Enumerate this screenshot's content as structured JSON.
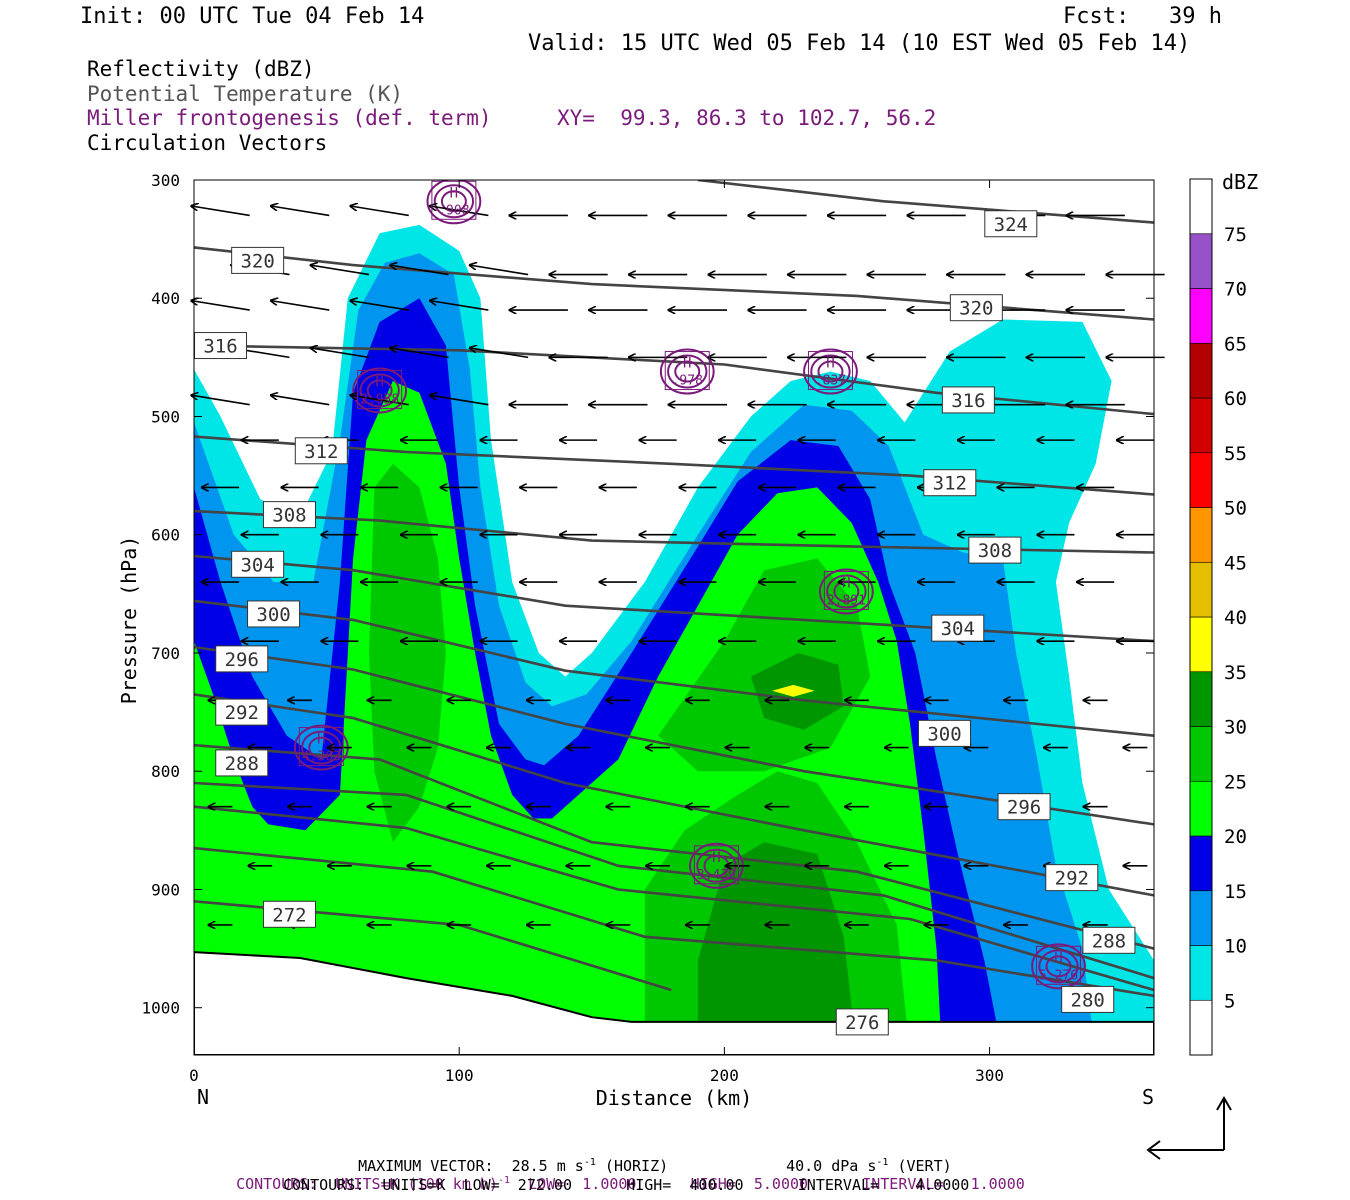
{
  "header": {
    "init": "Init: 00 UTC Tue 04 Feb 14",
    "fcst": "Fcst:   39 h",
    "valid": "Valid: 15 UTC Wed 05 Feb 14 (10 EST Wed 05 Feb 14)"
  },
  "fields": {
    "reflectivity": "Reflectivity (dBZ)",
    "theta": "Potential Temperature (K)",
    "frontogenesis": "Miller frontogenesis (def. term)",
    "xy": "XY=  99.3, 86.3 to 102.7, 56.2",
    "vectors": "Circulation Vectors"
  },
  "colors": {
    "title_text": "#000000",
    "theta_text": "#555555",
    "fronto": "#7a1a7a",
    "theta_line": "#444444",
    "frame": "#000000"
  },
  "footer": {
    "vector": "MAXIMUM VECTOR:  28.5 m s",
    "vector_exp": "-1",
    "vector_horiz": " (HORIZ)",
    "vector_vert": "40.0 dPa s",
    "vector_vert_exp": "-1",
    "vector_vert_tail": " (VERT)",
    "contours1_a": "CONTOURS:  UNITS=K (100 km h)",
    "contours1_exp": "-1",
    "contours1_b": "  LOW=  1.0000      HIGH=  5.0000      INTERVAL=   1.0000",
    "contours2": "CONTOURS:  UNITS=K  LOW=  272.00      HIGH=  400.00      INTERVAL=    4.0000"
  },
  "chart_data": {
    "type": "cross-section",
    "xlabel": "Distance (km)",
    "ylabel": "Pressure (hPa)",
    "xlim": [
      0,
      362
    ],
    "ylim": [
      1040,
      300
    ],
    "x_ticks": [
      0,
      100,
      200,
      300
    ],
    "y_ticks": [
      300,
      400,
      500,
      600,
      700,
      800,
      900,
      1000
    ],
    "end_labels": {
      "left": "N",
      "right": "S"
    },
    "colorbar": {
      "title": "dBZ",
      "levels": [
        5,
        10,
        15,
        20,
        25,
        30,
        35,
        40,
        45,
        50,
        55,
        60,
        65,
        70,
        75
      ],
      "colors": [
        "#ffffff",
        "#00e6e6",
        "#0096f0",
        "#0000e6",
        "#00ff00",
        "#00c800",
        "#009600",
        "#ffff00",
        "#e6be00",
        "#ff9600",
        "#ff0000",
        "#d20000",
        "#b40000",
        "#ff00ff",
        "#9650c8",
        "#ffffff"
      ]
    },
    "reflectivity_cells": [
      {
        "x": 0,
        "top": 460,
        "level": 5
      },
      {
        "x": 0,
        "top": 570,
        "level": 15
      },
      {
        "x": 70,
        "top": 345,
        "level": 5
      },
      {
        "x": 75,
        "top": 470,
        "level": 20
      },
      {
        "x": 80,
        "top": 570,
        "level": 25
      },
      {
        "x": 135,
        "top": 735,
        "level": 5
      },
      {
        "x": 230,
        "top": 460,
        "level": 5
      },
      {
        "x": 230,
        "top": 555,
        "level": 20
      },
      {
        "x": 225,
        "top": 710,
        "level": 30
      },
      {
        "x": 225,
        "top": 765,
        "level": 35
      }
    ],
    "theta_labels": [
      {
        "x": 308,
        "p": 337,
        "value": "324"
      },
      {
        "x": 24,
        "p": 368,
        "value": "320"
      },
      {
        "x": 295,
        "p": 408,
        "value": "320"
      },
      {
        "x": 10,
        "p": 440,
        "value": "316"
      },
      {
        "x": 292,
        "p": 486,
        "value": "316"
      },
      {
        "x": 48,
        "p": 529,
        "value": "312"
      },
      {
        "x": 285,
        "p": 556,
        "value": "312"
      },
      {
        "x": 36,
        "p": 583,
        "value": "308"
      },
      {
        "x": 302,
        "p": 613,
        "value": "308"
      },
      {
        "x": 24,
        "p": 625,
        "value": "304"
      },
      {
        "x": 288,
        "p": 679,
        "value": "304"
      },
      {
        "x": 30,
        "p": 667,
        "value": "300"
      },
      {
        "x": 283,
        "p": 768,
        "value": "300"
      },
      {
        "x": 18,
        "p": 705,
        "value": "296"
      },
      {
        "x": 313,
        "p": 830,
        "value": "296"
      },
      {
        "x": 18,
        "p": 750,
        "value": "292"
      },
      {
        "x": 331,
        "p": 890,
        "value": "292"
      },
      {
        "x": 18,
        "p": 793,
        "value": "288"
      },
      {
        "x": 345,
        "p": 943,
        "value": "288"
      },
      {
        "x": 36,
        "p": 921,
        "value": "272"
      },
      {
        "x": 337,
        "p": 993,
        "value": "280"
      },
      {
        "x": 252,
        "p": 1012,
        "value": "276"
      }
    ],
    "theta_isentropes": [
      {
        "value": 324,
        "points": [
          [
            190,
            300
          ],
          [
            260,
            318
          ],
          [
            362,
            336
          ]
        ]
      },
      {
        "value": 320,
        "points": [
          [
            0,
            357
          ],
          [
            60,
            372
          ],
          [
            150,
            388
          ],
          [
            250,
            398
          ],
          [
            362,
            418
          ]
        ]
      },
      {
        "value": 316,
        "points": [
          [
            0,
            440
          ],
          [
            100,
            444
          ],
          [
            200,
            456
          ],
          [
            280,
            480
          ],
          [
            362,
            498
          ]
        ]
      },
      {
        "value": 312,
        "points": [
          [
            0,
            517
          ],
          [
            80,
            530
          ],
          [
            180,
            540
          ],
          [
            270,
            550
          ],
          [
            362,
            566
          ]
        ]
      },
      {
        "value": 308,
        "points": [
          [
            0,
            580
          ],
          [
            70,
            588
          ],
          [
            150,
            605
          ],
          [
            250,
            610
          ],
          [
            362,
            615
          ]
        ]
      },
      {
        "value": 304,
        "points": [
          [
            0,
            618
          ],
          [
            60,
            630
          ],
          [
            140,
            660
          ],
          [
            230,
            672
          ],
          [
            362,
            690
          ]
        ]
      },
      {
        "value": 300,
        "points": [
          [
            0,
            656
          ],
          [
            60,
            672
          ],
          [
            140,
            715
          ],
          [
            230,
            740
          ],
          [
            362,
            770
          ]
        ]
      },
      {
        "value": 296,
        "points": [
          [
            0,
            695
          ],
          [
            60,
            714
          ],
          [
            140,
            760
          ],
          [
            230,
            800
          ],
          [
            362,
            845
          ]
        ]
      },
      {
        "value": 292,
        "points": [
          [
            0,
            735
          ],
          [
            60,
            755
          ],
          [
            140,
            810
          ],
          [
            230,
            850
          ],
          [
            362,
            905
          ]
        ]
      },
      {
        "value": 288,
        "points": [
          [
            0,
            778
          ],
          [
            70,
            790
          ],
          [
            150,
            860
          ],
          [
            250,
            885
          ],
          [
            362,
            950
          ]
        ]
      },
      {
        "value": 284,
        "points": [
          [
            0,
            810
          ],
          [
            80,
            820
          ],
          [
            160,
            880
          ],
          [
            260,
            905
          ],
          [
            362,
            975
          ]
        ]
      },
      {
        "value": 280,
        "points": [
          [
            0,
            830
          ],
          [
            80,
            848
          ],
          [
            160,
            900
          ],
          [
            270,
            925
          ],
          [
            362,
            985
          ]
        ]
      },
      {
        "value": 276,
        "points": [
          [
            0,
            865
          ],
          [
            90,
            885
          ],
          [
            170,
            940
          ],
          [
            280,
            960
          ],
          [
            362,
            990
          ]
        ]
      },
      {
        "value": 272,
        "points": [
          [
            0,
            910
          ],
          [
            100,
            930
          ],
          [
            180,
            985
          ]
        ]
      }
    ],
    "frontogenesis_maxima": [
      {
        "x": 98,
        "p": 318,
        "label": "H",
        "value": ".908"
      },
      {
        "x": 70,
        "p": 478,
        "label": "H",
        "value": "2.958"
      },
      {
        "x": 186,
        "p": 462,
        "label": "H",
        "value": ".978"
      },
      {
        "x": 240,
        "p": 462,
        "label": "H",
        "value": ".837"
      },
      {
        "x": 246,
        "p": 648,
        "label": "H",
        "value": "2.891"
      },
      {
        "x": 48,
        "p": 780,
        "label": "H",
        "value": "4.363"
      },
      {
        "x": 197,
        "p": 880,
        "label": "H",
        "value": "3.439"
      },
      {
        "x": 326,
        "p": 965,
        "label": "H",
        "value": "5.276"
      }
    ],
    "vector_wind": "westward flow aloft, easterly (leftward) arrows throughout",
    "reference_vector": {
      "horizontal_m_s": 28.5,
      "vertical_dPa_s": 40.0
    }
  }
}
